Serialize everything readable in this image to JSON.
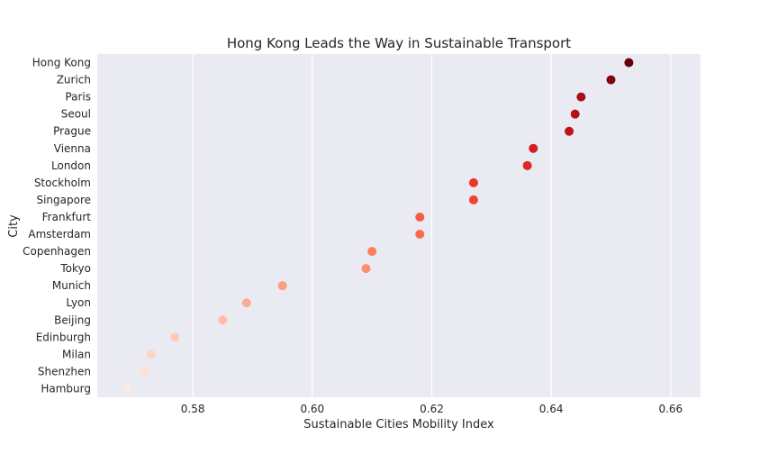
{
  "chart_data": {
    "type": "scatter",
    "title": "Hong Kong Leads the Way in Sustainable Transport",
    "xlabel": "Sustainable Cities Mobility Index",
    "ylabel": "City",
    "xlim": [
      0.564,
      0.665
    ],
    "x_ticks": [
      "0.58",
      "0.60",
      "0.62",
      "0.64",
      "0.66"
    ],
    "grid": "vertical",
    "background": "#eaeaf2",
    "points": [
      {
        "city": "Hong Kong",
        "value": 0.653,
        "color": "#67000d"
      },
      {
        "city": "Zurich",
        "value": 0.65,
        "color": "#7f040f"
      },
      {
        "city": "Paris",
        "value": 0.645,
        "color": "#a50f15"
      },
      {
        "city": "Seoul",
        "value": 0.644,
        "color": "#b11218"
      },
      {
        "city": "Prague",
        "value": 0.643,
        "color": "#bd151b"
      },
      {
        "city": "Vienna",
        "value": 0.637,
        "color": "#d21f21"
      },
      {
        "city": "London",
        "value": 0.636,
        "color": "#dc2a25"
      },
      {
        "city": "Stockholm",
        "value": 0.627,
        "color": "#ea372a"
      },
      {
        "city": "Singapore",
        "value": 0.627,
        "color": "#f14432"
      },
      {
        "city": "Frankfurt",
        "value": 0.618,
        "color": "#f75b40"
      },
      {
        "city": "Amsterdam",
        "value": 0.618,
        "color": "#fb6b4b"
      },
      {
        "city": "Copenhagen",
        "value": 0.61,
        "color": "#fc7f5f"
      },
      {
        "city": "Tokyo",
        "value": 0.609,
        "color": "#fc8d6d"
      },
      {
        "city": "Munich",
        "value": 0.595,
        "color": "#fc9e80"
      },
      {
        "city": "Lyon",
        "value": 0.589,
        "color": "#fcae92"
      },
      {
        "city": "Beijing",
        "value": 0.585,
        "color": "#fcbea5"
      },
      {
        "city": "Edinburgh",
        "value": 0.577,
        "color": "#fdcab5"
      },
      {
        "city": "Milan",
        "value": 0.573,
        "color": "#fdd7c6"
      },
      {
        "city": "Shenzhen",
        "value": 0.572,
        "color": "#fee2d5"
      },
      {
        "city": "Hamburg",
        "value": 0.569,
        "color": "#feebe2"
      }
    ]
  }
}
